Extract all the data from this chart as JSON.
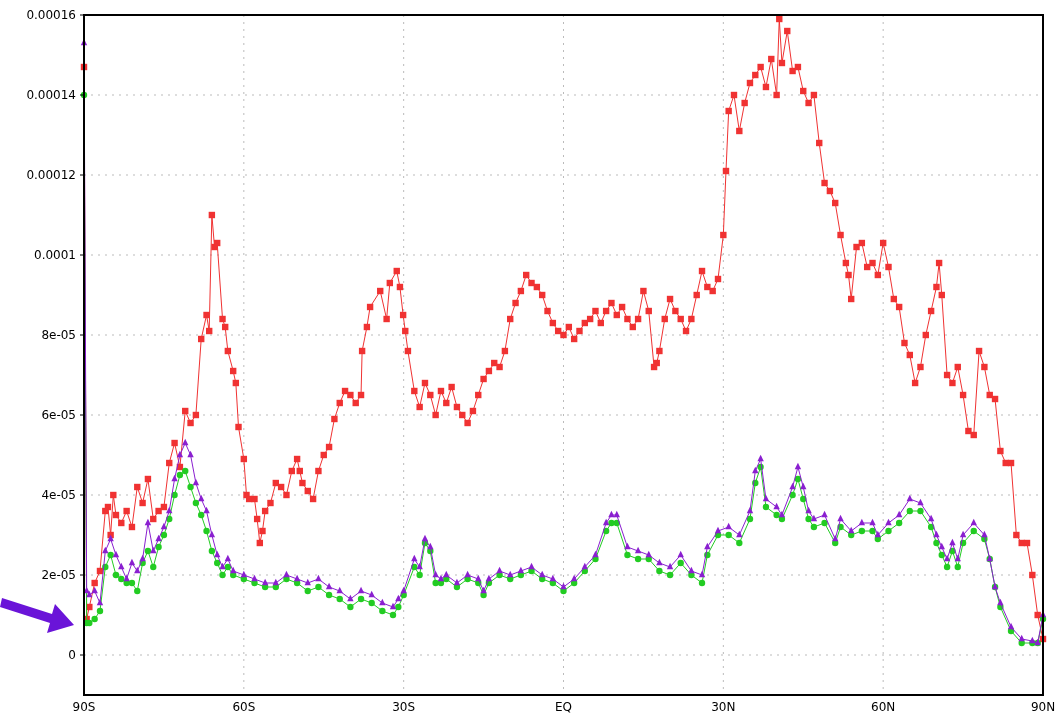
{
  "chart_data": {
    "type": "line",
    "xlim": [
      -90,
      90
    ],
    "xticks": [
      {
        "value": -90,
        "label": "90S"
      },
      {
        "value": -60,
        "label": "60S"
      },
      {
        "value": -30,
        "label": "30S"
      },
      {
        "value": 0,
        "label": "EQ"
      },
      {
        "value": 30,
        "label": "30N"
      },
      {
        "value": 60,
        "label": "60N"
      },
      {
        "value": 90,
        "label": "90N"
      }
    ],
    "ylim": [
      -1e-05,
      0.00016
    ],
    "yticks": [
      {
        "value": 0,
        "label": "0"
      },
      {
        "value": 2e-05,
        "label": "2e-05"
      },
      {
        "value": 4e-05,
        "label": "4e-05"
      },
      {
        "value": 6e-05,
        "label": "6e-05"
      },
      {
        "value": 8e-05,
        "label": "8e-05"
      },
      {
        "value": 0.0001,
        "label": "0.0001"
      },
      {
        "value": 0.00012,
        "label": "0.00012"
      },
      {
        "value": 0.00014,
        "label": "0.00014"
      },
      {
        "value": 0.00016,
        "label": "0.00016"
      }
    ],
    "grid": true,
    "line_style": "solid",
    "series": [
      {
        "color": "#f03232",
        "marker": "square",
        "x": [
          -90,
          -89.5,
          -89,
          -88,
          -87,
          -86,
          -85.5,
          -85,
          -84.5,
          -84,
          -83,
          -82,
          -81,
          -80,
          -79,
          -78,
          -77,
          -76,
          -75,
          -74,
          -73,
          -72,
          -71,
          -70,
          -69,
          -68,
          -67,
          -66.5,
          -66,
          -65.5,
          -65,
          -64,
          -63.5,
          -63,
          -62,
          -61.5,
          -61,
          -60,
          -59.5,
          -59,
          -58,
          -57.5,
          -57,
          -56.5,
          -56,
          -55,
          -54,
          -53,
          -52,
          -51,
          -50,
          -49.5,
          -49,
          -48,
          -47,
          -46,
          -45,
          -44,
          -43,
          -42,
          -41,
          -40,
          -39,
          -38,
          -37.8,
          -36.9,
          -36.3,
          -34.4,
          -33.2,
          -32.6,
          -31.3,
          -30.7,
          -30.1,
          -29.7,
          -29.2,
          -28,
          -27,
          -26,
          -25,
          -24,
          -23,
          -22,
          -21,
          -20,
          -19,
          -18,
          -17,
          -16,
          -15,
          -14,
          -13,
          -12,
          -11,
          -10,
          -9,
          -8,
          -7,
          -6,
          -5,
          -4,
          -3,
          -2,
          -1,
          0,
          1,
          2,
          3,
          4,
          5,
          6,
          7,
          8,
          9,
          10,
          11,
          12,
          13,
          14,
          15,
          16,
          17,
          17.5,
          18,
          19,
          20,
          21,
          22,
          23,
          24,
          25,
          26,
          27,
          28,
          29,
          30,
          30.5,
          31,
          32,
          33,
          34,
          35,
          36,
          37,
          38,
          39,
          40,
          40.5,
          41,
          42,
          43,
          44,
          45,
          46,
          47,
          48,
          49,
          50,
          51,
          52,
          53,
          53.5,
          54,
          55,
          56,
          57,
          58,
          59,
          60,
          61,
          62,
          63,
          64,
          65,
          66,
          67,
          68,
          69,
          70,
          70.5,
          71,
          72,
          73,
          74,
          75,
          76,
          77,
          78,
          79,
          80,
          81,
          82,
          83,
          84,
          85,
          86,
          87,
          88,
          89,
          90
        ],
        "values": [
          0.000147,
          9e-06,
          1.2e-05,
          1.8e-05,
          2.1e-05,
          3.6e-05,
          3.7e-05,
          3e-05,
          4e-05,
          3.5e-05,
          3.3e-05,
          3.6e-05,
          3.2e-05,
          4.2e-05,
          3.8e-05,
          4.4e-05,
          3.4e-05,
          3.6e-05,
          3.7e-05,
          4.8e-05,
          5.3e-05,
          4.7e-05,
          6.1e-05,
          5.8e-05,
          6e-05,
          7.9e-05,
          8.5e-05,
          8.1e-05,
          0.00011,
          0.000102,
          0.000103,
          8.4e-05,
          8.2e-05,
          7.6e-05,
          7.1e-05,
          6.8e-05,
          5.7e-05,
          4.9e-05,
          4e-05,
          3.9e-05,
          3.9e-05,
          3.4e-05,
          2.8e-05,
          3.1e-05,
          3.6e-05,
          3.8e-05,
          4.3e-05,
          4.2e-05,
          4e-05,
          4.6e-05,
          4.9e-05,
          4.6e-05,
          4.3e-05,
          4.1e-05,
          3.9e-05,
          4.6e-05,
          5e-05,
          5.2e-05,
          5.9e-05,
          6.3e-05,
          6.6e-05,
          6.5e-05,
          6.3e-05,
          6.5e-05,
          7.6e-05,
          8.2e-05,
          8.7e-05,
          9.1e-05,
          8.4e-05,
          9.3e-05,
          9.6e-05,
          9.2e-05,
          8.5e-05,
          8.1e-05,
          7.6e-05,
          6.6e-05,
          6.2e-05,
          6.8e-05,
          6.5e-05,
          6e-05,
          6.6e-05,
          6.3e-05,
          6.7e-05,
          6.2e-05,
          6e-05,
          5.8e-05,
          6.1e-05,
          6.5e-05,
          6.9e-05,
          7.1e-05,
          7.3e-05,
          7.2e-05,
          7.6e-05,
          8.4e-05,
          8.8e-05,
          9.1e-05,
          9.5e-05,
          9.3e-05,
          9.2e-05,
          9e-05,
          8.6e-05,
          8.3e-05,
          8.1e-05,
          8e-05,
          8.2e-05,
          7.9e-05,
          8.1e-05,
          8.3e-05,
          8.4e-05,
          8.6e-05,
          8.3e-05,
          8.6e-05,
          8.8e-05,
          8.5e-05,
          8.7e-05,
          8.4e-05,
          8.2e-05,
          8.4e-05,
          9.1e-05,
          8.6e-05,
          7.2e-05,
          7.3e-05,
          7.6e-05,
          8.4e-05,
          8.9e-05,
          8.6e-05,
          8.4e-05,
          8.1e-05,
          8.4e-05,
          9e-05,
          9.6e-05,
          9.2e-05,
          9.1e-05,
          9.4e-05,
          0.000105,
          0.000121,
          0.000136,
          0.00014,
          0.000131,
          0.000138,
          0.000143,
          0.000145,
          0.000147,
          0.000142,
          0.000149,
          0.00014,
          0.000159,
          0.000148,
          0.000156,
          0.000146,
          0.000147,
          0.000141,
          0.000138,
          0.00014,
          0.000128,
          0.000118,
          0.000116,
          0.000113,
          0.000105,
          9.8e-05,
          9.5e-05,
          8.9e-05,
          0.000102,
          0.000103,
          9.7e-05,
          9.8e-05,
          9.5e-05,
          0.000103,
          9.7e-05,
          8.9e-05,
          8.7e-05,
          7.8e-05,
          7.5e-05,
          6.8e-05,
          7.2e-05,
          8e-05,
          8.6e-05,
          9.2e-05,
          9.8e-05,
          9e-05,
          7e-05,
          6.8e-05,
          7.2e-05,
          6.5e-05,
          5.6e-05,
          5.5e-05,
          7.6e-05,
          7.2e-05,
          6.5e-05,
          6.4e-05,
          5.1e-05,
          4.8e-05,
          4.8e-05,
          3e-05,
          2.8e-05,
          2.8e-05,
          2e-05,
          1e-05,
          4e-06
        ]
      },
      {
        "color": "#22cc22",
        "marker": "circle",
        "x": [
          -90,
          -89.5,
          -89,
          -88,
          -87,
          -86,
          -85,
          -84,
          -83,
          -82,
          -81,
          -80,
          -79,
          -78,
          -77,
          -76,
          -75,
          -74,
          -73,
          -72,
          -71,
          -70,
          -69,
          -68,
          -67,
          -66,
          -65,
          -64,
          -63,
          -62,
          -60,
          -58,
          -56,
          -54,
          -52,
          -50,
          -48,
          -46,
          -44,
          -42,
          -40,
          -38,
          -36,
          -34,
          -32,
          -31,
          -30,
          -28,
          -27,
          -26,
          -25,
          -24,
          -23,
          -22,
          -20,
          -18,
          -16,
          -15,
          -14,
          -12,
          -10,
          -8,
          -6,
          -4,
          -2,
          0,
          2,
          4,
          6,
          8,
          9,
          10,
          12,
          14,
          16,
          18,
          20,
          22,
          24,
          26,
          27,
          29,
          31,
          33,
          35,
          36,
          37,
          38,
          40,
          41,
          43,
          44,
          45,
          46,
          47,
          49,
          51,
          52,
          54,
          56,
          58,
          59,
          61,
          63,
          65,
          67,
          69,
          70,
          71,
          72,
          73,
          74,
          75,
          77,
          79,
          80,
          81,
          82,
          84,
          86,
          88,
          89,
          90
        ],
        "values": [
          0.00014,
          8e-06,
          8e-06,
          9e-06,
          1.1e-05,
          2.2e-05,
          2.5e-05,
          2e-05,
          1.9e-05,
          1.8e-05,
          1.8e-05,
          1.6e-05,
          2.3e-05,
          2.6e-05,
          2.2e-05,
          2.7e-05,
          3e-05,
          3.4e-05,
          4e-05,
          4.5e-05,
          4.6e-05,
          4.2e-05,
          3.8e-05,
          3.5e-05,
          3.1e-05,
          2.6e-05,
          2.3e-05,
          2e-05,
          2.2e-05,
          2e-05,
          1.9e-05,
          1.8e-05,
          1.7e-05,
          1.7e-05,
          1.9e-05,
          1.8e-05,
          1.6e-05,
          1.7e-05,
          1.5e-05,
          1.4e-05,
          1.2e-05,
          1.4e-05,
          1.3e-05,
          1.1e-05,
          1e-05,
          1.2e-05,
          1.5e-05,
          2.2e-05,
          2e-05,
          2.8e-05,
          2.6e-05,
          1.8e-05,
          1.8e-05,
          1.9e-05,
          1.7e-05,
          1.9e-05,
          1.8e-05,
          1.5e-05,
          1.8e-05,
          2e-05,
          1.9e-05,
          2e-05,
          2.1e-05,
          1.9e-05,
          1.8e-05,
          1.6e-05,
          1.8e-05,
          2.1e-05,
          2.4e-05,
          3.1e-05,
          3.3e-05,
          3.3e-05,
          2.5e-05,
          2.4e-05,
          2.4e-05,
          2.1e-05,
          2e-05,
          2.3e-05,
          2e-05,
          1.8e-05,
          2.5e-05,
          3e-05,
          3e-05,
          2.8e-05,
          3.4e-05,
          4.3e-05,
          4.7e-05,
          3.7e-05,
          3.5e-05,
          3.4e-05,
          4e-05,
          4.4e-05,
          3.9e-05,
          3.4e-05,
          3.2e-05,
          3.3e-05,
          2.8e-05,
          3.2e-05,
          3e-05,
          3.1e-05,
          3.1e-05,
          2.9e-05,
          3.1e-05,
          3.3e-05,
          3.6e-05,
          3.6e-05,
          3.2e-05,
          2.8e-05,
          2.5e-05,
          2.2e-05,
          2.6e-05,
          2.2e-05,
          2.8e-05,
          3.1e-05,
          2.9e-05,
          2.4e-05,
          1.7e-05,
          1.2e-05,
          6e-06,
          3e-06,
          3e-06,
          3e-06,
          9e-06
        ]
      },
      {
        "color": "#8a1fd0",
        "marker": "triangle",
        "x": [
          -90,
          -89.5,
          -89,
          -88,
          -87,
          -86,
          -85,
          -84,
          -83,
          -82,
          -81,
          -80,
          -79,
          -78,
          -77,
          -76,
          -75,
          -74,
          -73,
          -72,
          -71,
          -70,
          -69,
          -68,
          -67,
          -66,
          -65,
          -64,
          -63,
          -62,
          -60,
          -58,
          -56,
          -54,
          -52,
          -50,
          -48,
          -46,
          -44,
          -42,
          -40,
          -38,
          -36,
          -34,
          -32,
          -31,
          -30,
          -28,
          -27,
          -26,
          -25,
          -24,
          -23,
          -22,
          -20,
          -18,
          -16,
          -15,
          -14,
          -12,
          -10,
          -8,
          -6,
          -4,
          -2,
          0,
          2,
          4,
          6,
          8,
          9,
          10,
          12,
          14,
          16,
          18,
          20,
          22,
          24,
          26,
          27,
          29,
          31,
          33,
          35,
          36,
          37,
          38,
          40,
          41,
          43,
          44,
          45,
          46,
          47,
          49,
          51,
          52,
          54,
          56,
          58,
          59,
          61,
          63,
          65,
          67,
          69,
          70,
          71,
          72,
          73,
          74,
          75,
          77,
          79,
          80,
          81,
          82,
          84,
          86,
          88,
          89,
          90
        ],
        "values": [
          0.000153,
          1.6e-05,
          1.5e-05,
          1.6e-05,
          1.3e-05,
          2.6e-05,
          2.9e-05,
          2.5e-05,
          2.2e-05,
          1.9e-05,
          2.3e-05,
          2.1e-05,
          2.4e-05,
          3.3e-05,
          2.6e-05,
          2.9e-05,
          3.2e-05,
          3.6e-05,
          4.4e-05,
          5e-05,
          5.3e-05,
          5e-05,
          4.3e-05,
          3.9e-05,
          3.6e-05,
          3e-05,
          2.5e-05,
          2.2e-05,
          2.4e-05,
          2.1e-05,
          2e-05,
          1.9e-05,
          1.8e-05,
          1.8e-05,
          2e-05,
          1.9e-05,
          1.8e-05,
          1.9e-05,
          1.7e-05,
          1.6e-05,
          1.4e-05,
          1.6e-05,
          1.5e-05,
          1.3e-05,
          1.2e-05,
          1.4e-05,
          1.6e-05,
          2.4e-05,
          2.2e-05,
          2.9e-05,
          2.7e-05,
          2e-05,
          1.9e-05,
          2e-05,
          1.8e-05,
          2e-05,
          1.9e-05,
          1.6e-05,
          1.9e-05,
          2.1e-05,
          2e-05,
          2.1e-05,
          2.2e-05,
          2e-05,
          1.9e-05,
          1.7e-05,
          1.9e-05,
          2.2e-05,
          2.5e-05,
          3.3e-05,
          3.5e-05,
          3.5e-05,
          2.7e-05,
          2.6e-05,
          2.5e-05,
          2.3e-05,
          2.2e-05,
          2.5e-05,
          2.1e-05,
          2e-05,
          2.7e-05,
          3.1e-05,
          3.2e-05,
          3e-05,
          3.6e-05,
          4.6e-05,
          4.9e-05,
          3.9e-05,
          3.7e-05,
          3.5e-05,
          4.2e-05,
          4.7e-05,
          4.2e-05,
          3.6e-05,
          3.4e-05,
          3.5e-05,
          2.9e-05,
          3.4e-05,
          3.1e-05,
          3.3e-05,
          3.3e-05,
          3e-05,
          3.3e-05,
          3.5e-05,
          3.9e-05,
          3.8e-05,
          3.4e-05,
          3e-05,
          2.7e-05,
          2.4e-05,
          2.8e-05,
          2.4e-05,
          3e-05,
          3.3e-05,
          3e-05,
          2.4e-05,
          1.7e-05,
          1.3e-05,
          7e-06,
          4e-06,
          3.5e-06,
          3e-06,
          1e-05
        ]
      }
    ]
  }
}
